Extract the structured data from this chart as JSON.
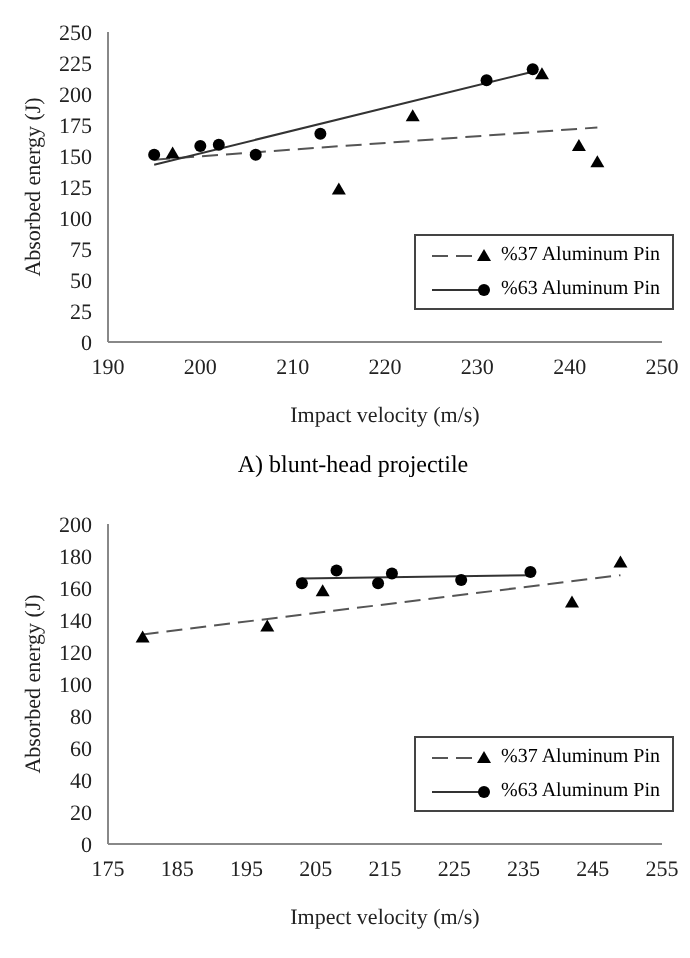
{
  "chart_data": [
    {
      "type": "scatter",
      "xlabel": "Impact velocity (m/s)",
      "ylabel": "Absorbed energy (J)",
      "xlim": [
        190,
        250
      ],
      "xticks": [
        190,
        200,
        210,
        220,
        230,
        240,
        250
      ],
      "ylim": [
        0,
        250
      ],
      "yticks": [
        0,
        25,
        50,
        75,
        100,
        125,
        150,
        175,
        200,
        225,
        250
      ],
      "grid": false,
      "legend": "bottom right",
      "annotations": [
        "A) blunt-head projectile"
      ],
      "series": [
        {
          "name": "%37 Aluminum Pin",
          "marker": "triangle",
          "color": "#000000",
          "x": [
            197,
            215,
            223,
            237,
            241,
            243
          ],
          "values": [
            152,
            123,
            182,
            216,
            158,
            145
          ]
        },
        {
          "type": "line",
          "line_style": "dashed",
          "marker": "none",
          "color": "#555555",
          "x": [
            195,
            243
          ],
          "values": [
            147,
            173
          ]
        },
        {
          "name": "%63 Aluminum Pin",
          "marker": "circle",
          "color": "#000000",
          "x": [
            195,
            200,
            202,
            206,
            213,
            231,
            236
          ],
          "values": [
            151,
            158,
            159,
            151,
            168,
            211,
            220
          ]
        },
        {
          "type": "line",
          "line_style": "solid",
          "marker": "none",
          "color": "#333333",
          "x": [
            195,
            236
          ],
          "values": [
            143,
            218
          ]
        }
      ]
    },
    {
      "type": "scatter",
      "xlabel": "Impect velocity (m/s)",
      "ylabel": "Absorbed energy (J)",
      "xlim": [
        175,
        255
      ],
      "xticks": [
        175,
        185,
        195,
        205,
        215,
        225,
        235,
        245,
        255
      ],
      "ylim": [
        0,
        200
      ],
      "yticks": [
        0,
        20,
        40,
        60,
        80,
        100,
        120,
        140,
        160,
        180,
        200
      ],
      "grid": false,
      "legend": "bottom right",
      "series": [
        {
          "name": "%37 Aluminum Pin",
          "marker": "triangle",
          "color": "#000000",
          "x": [
            180,
            198,
            206,
            242,
            249
          ],
          "values": [
            129,
            136,
            158,
            151,
            176
          ]
        },
        {
          "type": "line",
          "line_style": "dashed",
          "marker": "none",
          "color": "#555555",
          "x": [
            180,
            249
          ],
          "values": [
            131,
            168
          ]
        },
        {
          "name": "%63 Aluminum Pin",
          "marker": "circle",
          "color": "#000000",
          "x": [
            203,
            208,
            214,
            216,
            226,
            236
          ],
          "values": [
            163,
            171,
            163,
            169,
            165,
            170
          ]
        },
        {
          "type": "line",
          "line_style": "solid",
          "marker": "none",
          "color": "#333333",
          "x": [
            203,
            236
          ],
          "values": [
            166,
            168
          ]
        }
      ]
    }
  ]
}
